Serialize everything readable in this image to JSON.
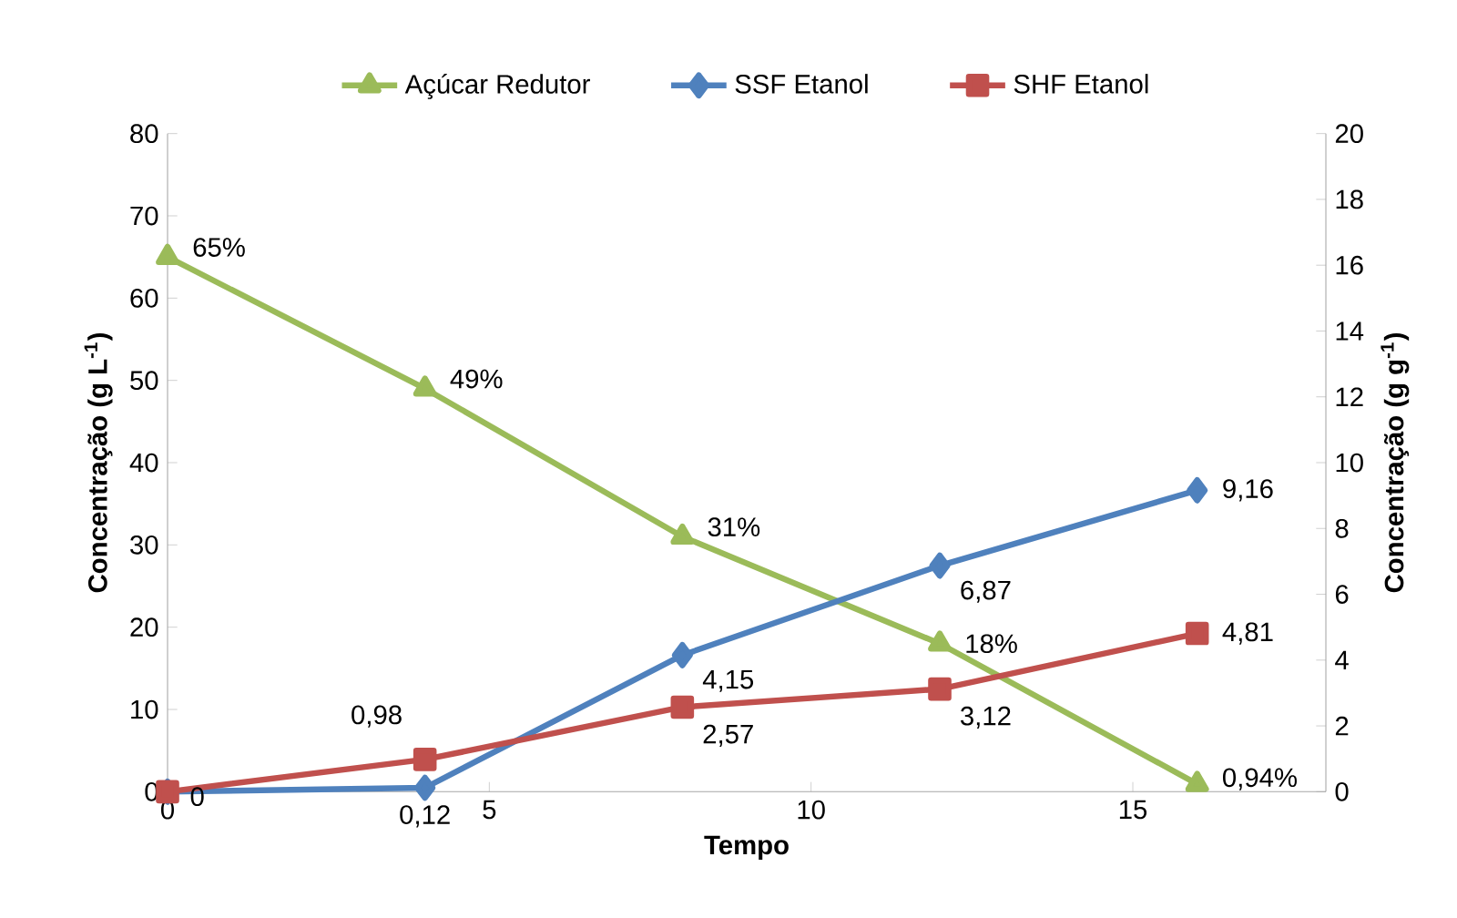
{
  "chart_data": {
    "type": "line",
    "xlabel": "Tempo",
    "ylabel": "Concentração (g L$^{-1}$)",
    "y2label": "Concentração (g g$^{-1}$)",
    "x": [
      0,
      4,
      8,
      12,
      16
    ],
    "series": [
      {
        "name": "Açúcar Redutor",
        "color": "#9bbb59",
        "marker": "triangle",
        "values": [
          65,
          49,
          31,
          18,
          0.94
        ],
        "value_labels": [
          "65%",
          "49%",
          "31%",
          "18%",
          "0,94%"
        ]
      },
      {
        "name": "SSF Etanol",
        "color": "#4f81bd",
        "marker": "diamond",
        "axis": "y2",
        "values": [
          0,
          0.12,
          4.15,
          6.87,
          9.16
        ],
        "value_labels": [
          null,
          "0,12",
          "4,15",
          "6,87",
          "9,16"
        ]
      },
      {
        "name": "SHF Etanol",
        "color": "#c0504d",
        "marker": "square",
        "axis": "y2",
        "values": [
          0,
          0.98,
          2.57,
          3.12,
          4.81
        ],
        "value_labels": [
          "0",
          "0,98",
          "2,57",
          "3,12",
          "4,81"
        ]
      }
    ],
    "xlim": [
      0,
      18
    ],
    "xticks": [
      0,
      5,
      10,
      15
    ],
    "ylim": [
      0,
      80
    ],
    "yticks": [
      0,
      10,
      20,
      30,
      40,
      50,
      60,
      70,
      80
    ],
    "y2lim": [
      0,
      20
    ],
    "y2ticks": [
      0,
      2,
      4,
      6,
      8,
      10,
      12,
      14,
      16,
      18,
      20
    ],
    "grid": false,
    "legend": "top",
    "line_style": "solid"
  }
}
